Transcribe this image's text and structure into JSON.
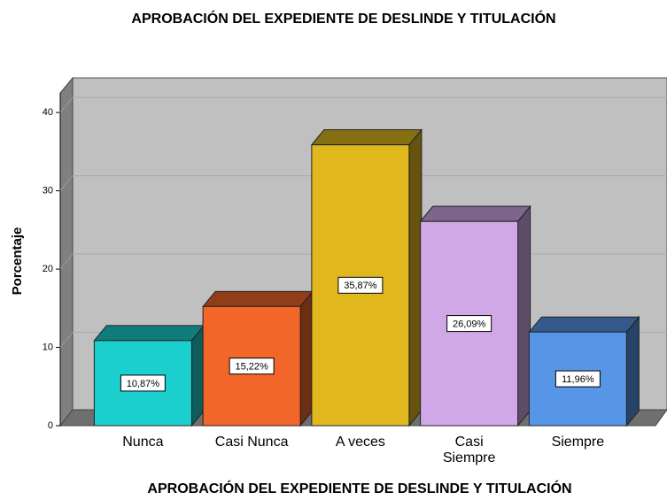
{
  "chart_data": {
    "type": "bar3d",
    "title": "APROBACIÓN DEL EXPEDIENTE DE DESLINDE Y TITULACIÓN",
    "x_label": "APROBACIÓN DEL EXPEDIENTE DE DESLINDE Y TITULACIÓN",
    "y_label": "Porcentaje",
    "categories": [
      "Nunca",
      "Casi Nunca",
      "A veces",
      "Casi Siempre",
      "Siempre"
    ],
    "values": [
      10.87,
      15.22,
      35.87,
      26.09,
      11.96
    ],
    "value_labels": [
      "10,87%",
      "15,22%",
      "35,87%",
      "26,09%",
      "11,96%"
    ],
    "colors": [
      "#1ccfcf",
      "#f2662a",
      "#e0b81e",
      "#d0a8e8",
      "#5795e6"
    ],
    "ylim": [
      0,
      42.5
    ],
    "yticks": [
      0,
      10,
      20,
      30,
      40
    ],
    "grid": true
  }
}
